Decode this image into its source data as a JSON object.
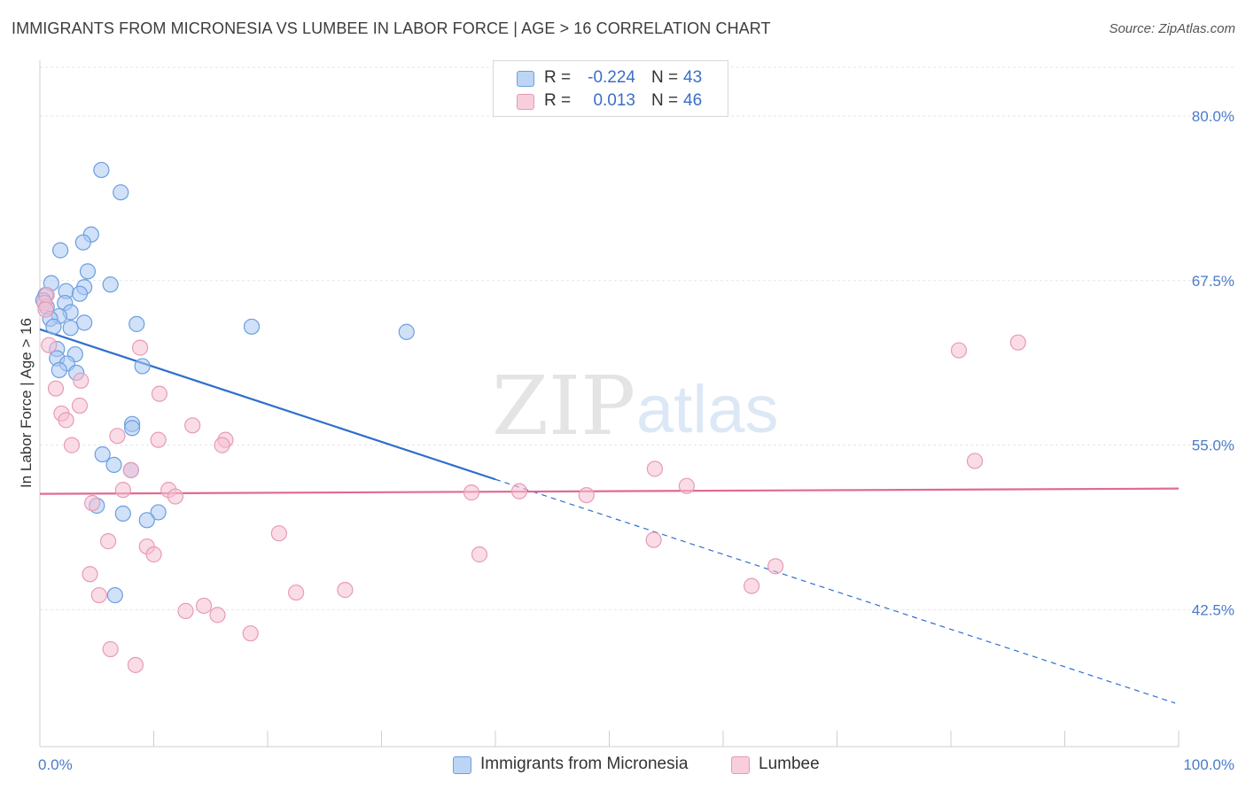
{
  "title": "IMMIGRANTS FROM MICRONESIA VS LUMBEE IN LABOR FORCE | AGE > 16 CORRELATION CHART",
  "source": "Source: ZipAtlas.com",
  "watermark": {
    "zip": "ZIP",
    "atlas": "atlas"
  },
  "colors": {
    "blue_fill": "#a9c8f2",
    "blue_stroke": "#6c9ee0",
    "blue_line": "#2f6fcc",
    "pink_fill": "#f6bfd1",
    "pink_stroke": "#e79bb6",
    "pink_line": "#e06a94",
    "tick_text": "#4a7cc8",
    "grid": "#e6e6e6"
  },
  "stats": [
    {
      "series": "Immigrants from Micronesia",
      "r_label": "R =",
      "r_value": "-0.224",
      "n_label": "N =",
      "n_value": "43"
    },
    {
      "series": "Lumbee",
      "r_label": "R =",
      "r_value": "0.013",
      "n_label": "N =",
      "n_value": "46"
    }
  ],
  "legend": [
    {
      "name": "Immigrants from Micronesia"
    },
    {
      "name": "Lumbee"
    }
  ],
  "chart_data": {
    "type": "scatter",
    "title": "IMMIGRANTS FROM MICRONESIA VS LUMBEE IN LABOR FORCE | AGE > 16 CORRELATION CHART",
    "xlabel": "",
    "ylabel": "In Labor Force | Age > 16",
    "xlim": [
      0,
      100
    ],
    "ylim": [
      32.1,
      83.7
    ],
    "x_tick_labels": [
      "0.0%",
      "100.0%"
    ],
    "y_ticks": [
      {
        "value": 80.0,
        "label": "80.0%"
      },
      {
        "value": 67.5,
        "label": "67.5%"
      },
      {
        "value": 55.0,
        "label": "55.0%"
      },
      {
        "value": 42.5,
        "label": "42.5%"
      }
    ],
    "grid": true,
    "legend_position": "bottom-center",
    "series": [
      {
        "name": "Immigrants from Micronesia",
        "trend": {
          "x0": 0.0,
          "y0": 63.8,
          "x1": 40.0,
          "y1": 52.4,
          "dash_to_x": 99.7,
          "dash_to_y": 35.4
        },
        "points": [
          [
            5.4,
            75.9
          ],
          [
            7.1,
            74.2
          ],
          [
            4.5,
            71.0
          ],
          [
            3.8,
            70.4
          ],
          [
            1.8,
            69.8
          ],
          [
            4.2,
            68.2
          ],
          [
            6.2,
            67.2
          ],
          [
            3.9,
            67.0
          ],
          [
            1.0,
            67.3
          ],
          [
            2.3,
            66.7
          ],
          [
            3.5,
            66.5
          ],
          [
            0.5,
            66.4
          ],
          [
            0.3,
            66.0
          ],
          [
            2.2,
            65.8
          ],
          [
            0.6,
            65.5
          ],
          [
            2.7,
            65.1
          ],
          [
            1.7,
            64.8
          ],
          [
            0.9,
            64.6
          ],
          [
            3.9,
            64.3
          ],
          [
            8.5,
            64.2
          ],
          [
            1.2,
            64.0
          ],
          [
            2.7,
            63.9
          ],
          [
            18.6,
            64.0
          ],
          [
            32.2,
            63.6
          ],
          [
            1.5,
            62.3
          ],
          [
            3.1,
            61.9
          ],
          [
            1.5,
            61.6
          ],
          [
            2.4,
            61.2
          ],
          [
            9.0,
            61.0
          ],
          [
            1.7,
            60.7
          ],
          [
            3.2,
            60.5
          ],
          [
            8.1,
            56.6
          ],
          [
            8.1,
            56.3
          ],
          [
            5.5,
            54.3
          ],
          [
            6.5,
            53.5
          ],
          [
            8.0,
            53.1
          ],
          [
            5.0,
            50.4
          ],
          [
            7.3,
            49.8
          ],
          [
            10.4,
            49.9
          ],
          [
            9.4,
            49.3
          ],
          [
            6.6,
            43.6
          ]
        ]
      },
      {
        "name": "Lumbee",
        "trend": {
          "x0": 0.0,
          "y0": 51.3,
          "x1": 100.0,
          "y1": 51.7
        },
        "points": [
          [
            0.6,
            66.4
          ],
          [
            0.4,
            65.8
          ],
          [
            0.5,
            65.3
          ],
          [
            0.8,
            62.6
          ],
          [
            8.8,
            62.4
          ],
          [
            1.4,
            59.3
          ],
          [
            3.6,
            59.9
          ],
          [
            10.5,
            58.9
          ],
          [
            3.5,
            58.0
          ],
          [
            1.9,
            57.4
          ],
          [
            2.3,
            56.9
          ],
          [
            13.4,
            56.5
          ],
          [
            6.8,
            55.7
          ],
          [
            10.4,
            55.4
          ],
          [
            16.3,
            55.4
          ],
          [
            2.8,
            55.0
          ],
          [
            16.0,
            55.0
          ],
          [
            8.0,
            53.1
          ],
          [
            7.3,
            51.6
          ],
          [
            11.3,
            51.6
          ],
          [
            11.9,
            51.1
          ],
          [
            4.6,
            50.6
          ],
          [
            37.9,
            51.4
          ],
          [
            42.1,
            51.5
          ],
          [
            48.0,
            51.2
          ],
          [
            54.0,
            53.2
          ],
          [
            56.8,
            51.9
          ],
          [
            80.7,
            62.2
          ],
          [
            82.1,
            53.8
          ],
          [
            85.9,
            62.8
          ],
          [
            6.0,
            47.7
          ],
          [
            9.4,
            47.3
          ],
          [
            10.0,
            46.7
          ],
          [
            21.0,
            48.3
          ],
          [
            4.4,
            45.2
          ],
          [
            38.6,
            46.7
          ],
          [
            53.9,
            47.8
          ],
          [
            64.6,
            45.8
          ],
          [
            62.5,
            44.3
          ],
          [
            5.2,
            43.6
          ],
          [
            22.5,
            43.8
          ],
          [
            26.8,
            44.0
          ],
          [
            14.4,
            42.8
          ],
          [
            12.8,
            42.4
          ],
          [
            15.6,
            42.1
          ],
          [
            18.5,
            40.7
          ],
          [
            6.2,
            39.5
          ],
          [
            8.4,
            38.3
          ]
        ]
      }
    ]
  }
}
